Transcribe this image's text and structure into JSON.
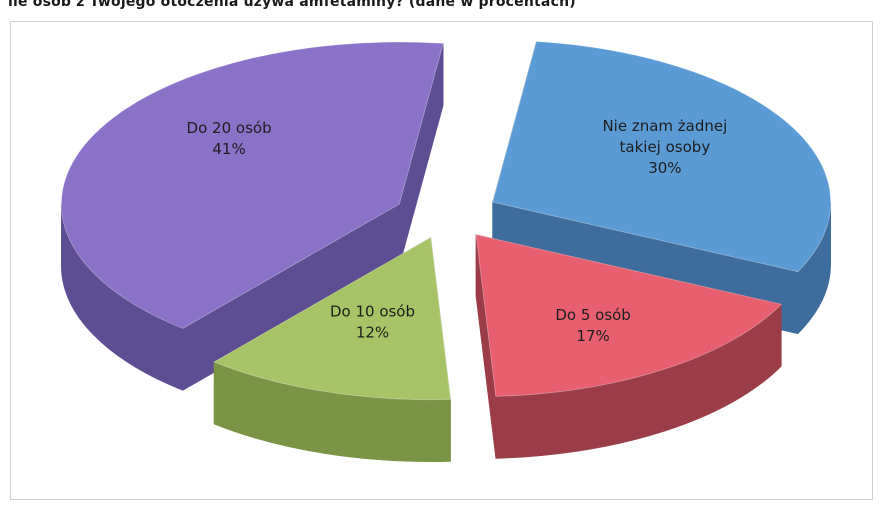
{
  "chart_data": {
    "type": "pie",
    "title": "ile osób z Twojego otoczenia używa amfetaminy? (dane w procentach)",
    "categories": [
      "Nie znam żadnej takiej osoby",
      "Do 5 osób",
      "Do 10 osób",
      "Do 20 osób"
    ],
    "values": [
      30,
      17,
      12,
      41
    ],
    "unit": "%",
    "labels": [
      {
        "lines": [
          "Nie znam żadnej",
          "takiej osoby"
        ],
        "pct": "30%"
      },
      {
        "lines": [
          "Do 5 osób"
        ],
        "pct": "17%"
      },
      {
        "lines": [
          "Do 10 osób"
        ],
        "pct": "12%"
      },
      {
        "lines": [
          "Do 20 osób"
        ],
        "pct": "41%"
      }
    ],
    "colors": [
      "#5b9bd5",
      "#e8606f",
      "#a6c466",
      "#8a72c9"
    ],
    "side_colors": [
      "#3e6c9c",
      "#9a3d47",
      "#7a9446",
      "#5d4d92"
    ],
    "style": "3d-exploded",
    "legend": "none"
  }
}
